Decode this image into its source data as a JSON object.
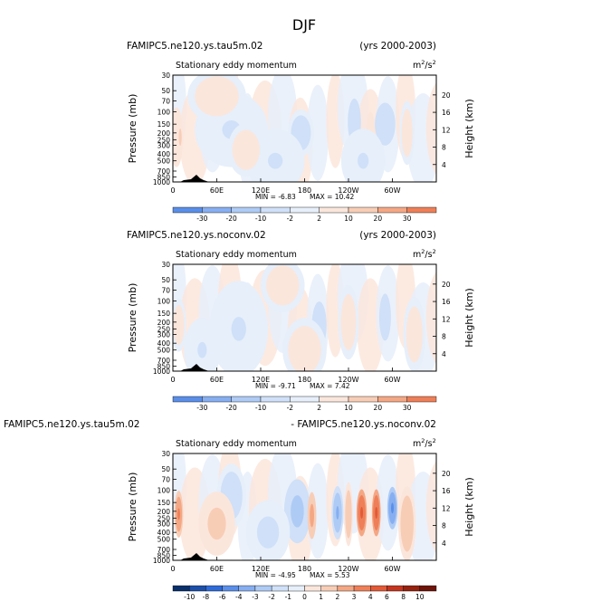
{
  "page": {
    "title": "DJF"
  },
  "chart_data": [
    {
      "type": "heatmap",
      "left_title": "FAMIPC5.ne120.ys.tau5m.02",
      "right_title": "(yrs 2000-2003)",
      "variable": "Stationary eddy momentum",
      "units_base": "m",
      "units_exp": "2",
      "units_sep": "/s",
      "units_exp2": "2",
      "ylabel": "Pressure (mb)",
      "ylabel_right": "Height (km)",
      "x_ticks": [
        "0",
        "60E",
        "120E",
        "180",
        "120W",
        "60W"
      ],
      "y_ticks": [
        "30",
        "50",
        "70",
        "100",
        "150",
        "200",
        "250",
        "300",
        "400",
        "500",
        "700",
        "850",
        "1000"
      ],
      "height_ticks": [
        "20",
        "16",
        "12",
        "8",
        "4"
      ],
      "min_text": "MIN = -6.83",
      "max_text": "MAX = 10.42",
      "colorbar_levels": [
        "-30",
        "-20",
        "-10",
        "-2",
        "2",
        "10",
        "20",
        "30"
      ],
      "colorbar_colors": [
        "#08306b",
        "#1c4fa8",
        "#2f6bd8",
        "#5a8ee8",
        "#86aef0",
        "#aecbf5",
        "#cfe0f8",
        "#e6effa",
        "#fbe6dc",
        "#f8cdb6",
        "#f4a784",
        "#ee7f58",
        "#e25a37",
        "#c4351f",
        "#962210",
        "#6e1408"
      ],
      "blobs": [
        {
          "lon": 5,
          "p": 230,
          "rx": 9,
          "ry": 0.28,
          "v": 6
        },
        {
          "lon": 10,
          "p": 230,
          "rx": 4,
          "ry": 0.16,
          "v": 12
        },
        {
          "lon": 80,
          "p": 180,
          "rx": 50,
          "ry": 0.35,
          "v": -2
        },
        {
          "lon": 175,
          "p": 200,
          "rx": 18,
          "ry": 0.22,
          "v": -3
        },
        {
          "lon": 248,
          "p": 140,
          "rx": 9,
          "ry": 0.22,
          "v": -5
        },
        {
          "lon": 270,
          "p": 230,
          "rx": 7,
          "ry": 0.24,
          "v": 8
        },
        {
          "lon": 290,
          "p": 150,
          "rx": 14,
          "ry": 0.2,
          "v": -6
        },
        {
          "lon": 320,
          "p": 200,
          "rx": 10,
          "ry": 0.3,
          "v": 3
        },
        {
          "lon": 140,
          "p": 500,
          "rx": 40,
          "ry": 0.3,
          "v": -2
        },
        {
          "lon": 60,
          "p": 60,
          "rx": 40,
          "ry": 0.25,
          "v": 3
        },
        {
          "lon": 260,
          "p": 500,
          "rx": 30,
          "ry": 0.3,
          "v": -2
        },
        {
          "lon": 100,
          "p": 350,
          "rx": 25,
          "ry": 0.25,
          "v": 3
        }
      ]
    },
    {
      "type": "heatmap",
      "left_title": "FAMIPC5.ne120.ys.noconv.02",
      "right_title": "(yrs 2000-2003)",
      "variable": "Stationary eddy momentum",
      "units_base": "m",
      "units_exp": "2",
      "units_sep": "/s",
      "units_exp2": "2",
      "ylabel": "Pressure (mb)",
      "ylabel_right": "Height (km)",
      "x_ticks": [
        "0",
        "60E",
        "120E",
        "180",
        "120W",
        "60W"
      ],
      "y_ticks": [
        "30",
        "50",
        "70",
        "100",
        "150",
        "200",
        "250",
        "300",
        "400",
        "500",
        "700",
        "850",
        "1000"
      ],
      "height_ticks": [
        "20",
        "16",
        "12",
        "8",
        "4"
      ],
      "min_text": "MIN = -9.71",
      "max_text": "MAX = 7.42",
      "colorbar_levels": [
        "-30",
        "-20",
        "-10",
        "-2",
        "2",
        "10",
        "20",
        "30"
      ],
      "colorbar_colors": [
        "#08306b",
        "#1c4fa8",
        "#2f6bd8",
        "#5a8ee8",
        "#86aef0",
        "#aecbf5",
        "#cfe0f8",
        "#e6effa",
        "#fbe6dc",
        "#f8cdb6",
        "#f4a784",
        "#ee7f58",
        "#e25a37",
        "#c4351f",
        "#962210",
        "#6e1408"
      ],
      "blobs": [
        {
          "lon": 8,
          "p": 220,
          "rx": 10,
          "ry": 0.25,
          "v": 3
        },
        {
          "lon": 90,
          "p": 250,
          "rx": 40,
          "ry": 0.45,
          "v": -2
        },
        {
          "lon": 200,
          "p": 220,
          "rx": 10,
          "ry": 0.22,
          "v": -5
        },
        {
          "lon": 290,
          "p": 170,
          "rx": 8,
          "ry": 0.22,
          "v": -6
        },
        {
          "lon": 240,
          "p": 200,
          "rx": 14,
          "ry": 0.35,
          "v": 3
        },
        {
          "lon": 150,
          "p": 60,
          "rx": 30,
          "ry": 0.25,
          "v": 3
        },
        {
          "lon": 40,
          "p": 500,
          "rx": 25,
          "ry": 0.3,
          "v": -2
        },
        {
          "lon": 330,
          "p": 300,
          "rx": 15,
          "ry": 0.35,
          "v": 3
        },
        {
          "lon": 180,
          "p": 500,
          "rx": 30,
          "ry": 0.3,
          "v": 3
        }
      ]
    },
    {
      "type": "heatmap",
      "left_title": "FAMIPC5.ne120.ys.tau5m.02",
      "right_title": "- FAMIPC5.ne120.ys.noconv.02",
      "variable": "Stationary eddy momentum",
      "units_base": "m",
      "units_exp": "2",
      "units_sep": "/s",
      "units_exp2": "2",
      "ylabel": "Pressure (mb)",
      "ylabel_right": "Height (km)",
      "x_ticks": [
        "0",
        "60E",
        "120E",
        "180",
        "120W",
        "60W"
      ],
      "y_ticks": [
        "30",
        "50",
        "70",
        "100",
        "150",
        "200",
        "250",
        "300",
        "400",
        "500",
        "700",
        "850",
        "1000"
      ],
      "height_ticks": [
        "20",
        "16",
        "12",
        "8",
        "4"
      ],
      "min_text": "MIN = -4.95",
      "max_text": "MAX = 5.53",
      "colorbar_levels": [
        "-10",
        "-8",
        "-6",
        "-4",
        "-3",
        "-2",
        "-1",
        "0",
        "1",
        "2",
        "3",
        "4",
        "6",
        "8",
        "10"
      ],
      "colorbar_colors": [
        "#08306b",
        "#1c4fa8",
        "#2f6bd8",
        "#5a8ee8",
        "#86aef0",
        "#aecbf5",
        "#cfe0f8",
        "#e6effa",
        "#fbe6dc",
        "#f8cdb6",
        "#f4a784",
        "#ee7f58",
        "#e25a37",
        "#c4351f",
        "#962210",
        "#6e1408"
      ],
      "blobs": [
        {
          "lon": 8,
          "p": 220,
          "rx": 6,
          "ry": 0.22,
          "v": 3.5
        },
        {
          "lon": 170,
          "p": 200,
          "rx": 18,
          "ry": 0.3,
          "v": -2.5
        },
        {
          "lon": 190,
          "p": 230,
          "rx": 6,
          "ry": 0.22,
          "v": 2.5
        },
        {
          "lon": 225,
          "p": 210,
          "rx": 8,
          "ry": 0.25,
          "v": -3.5
        },
        {
          "lon": 258,
          "p": 210,
          "rx": 7,
          "ry": 0.22,
          "v": 4.5
        },
        {
          "lon": 278,
          "p": 210,
          "rx": 6,
          "ry": 0.22,
          "v": 4.5
        },
        {
          "lon": 300,
          "p": 180,
          "rx": 7,
          "ry": 0.2,
          "v": -4.5
        },
        {
          "lon": 240,
          "p": 220,
          "rx": 6,
          "ry": 0.3,
          "v": 1.5
        },
        {
          "lon": 320,
          "p": 300,
          "rx": 12,
          "ry": 0.35,
          "v": 1.5
        },
        {
          "lon": 80,
          "p": 120,
          "rx": 20,
          "ry": 0.3,
          "v": -1.5
        },
        {
          "lon": 130,
          "p": 400,
          "rx": 30,
          "ry": 0.3,
          "v": -1.2
        },
        {
          "lon": 60,
          "p": 300,
          "rx": 25,
          "ry": 0.3,
          "v": 1.2
        }
      ]
    }
  ]
}
